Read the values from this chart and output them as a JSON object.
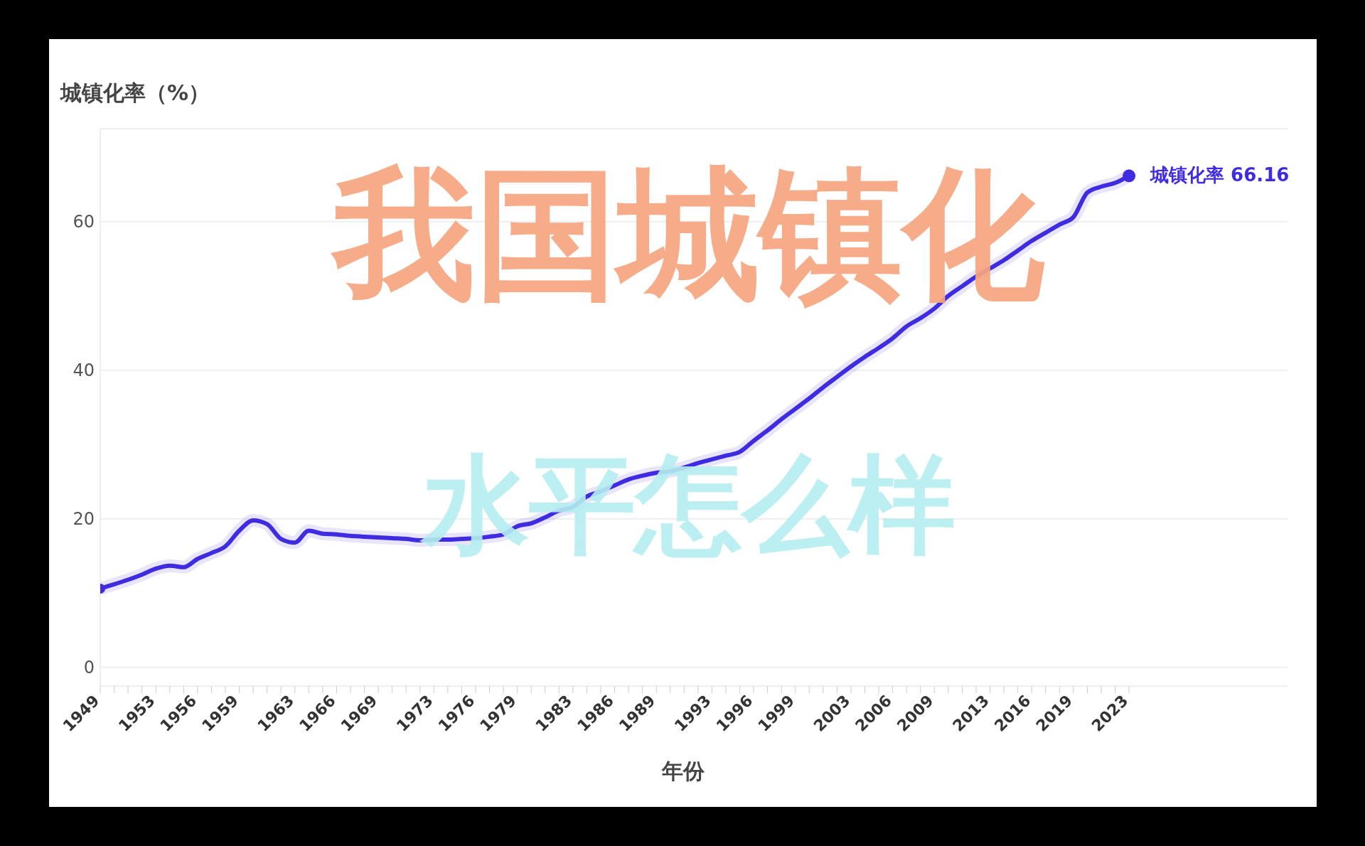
{
  "chart_data": {
    "type": "line",
    "title": "我国城镇化",
    "subtitle": "水平怎么样",
    "xlabel": "年份",
    "ylabel": "城镇化率（%）",
    "x": [
      1949,
      1950,
      1951,
      1952,
      1953,
      1954,
      1955,
      1956,
      1957,
      1958,
      1959,
      1960,
      1961,
      1962,
      1963,
      1964,
      1965,
      1966,
      1967,
      1968,
      1969,
      1970,
      1971,
      1972,
      1973,
      1974,
      1975,
      1976,
      1977,
      1978,
      1979,
      1980,
      1981,
      1982,
      1983,
      1984,
      1985,
      1986,
      1987,
      1988,
      1989,
      1990,
      1991,
      1992,
      1993,
      1994,
      1995,
      1996,
      1997,
      1998,
      1999,
      2000,
      2001,
      2002,
      2003,
      2004,
      2005,
      2006,
      2007,
      2008,
      2009,
      2010,
      2011,
      2012,
      2013,
      2014,
      2015,
      2016,
      2017,
      2018,
      2019,
      2020,
      2021,
      2022,
      2023
    ],
    "series": [
      {
        "name": "城镇化率",
        "color": "#3f2be0",
        "values": [
          10.6,
          11.2,
          11.8,
          12.5,
          13.3,
          13.7,
          13.5,
          14.6,
          15.4,
          16.3,
          18.4,
          19.8,
          19.3,
          17.3,
          16.8,
          18.4,
          18.0,
          17.9,
          17.7,
          17.6,
          17.5,
          17.4,
          17.3,
          17.1,
          17.2,
          17.2,
          17.3,
          17.4,
          17.6,
          17.9,
          19.0,
          19.4,
          20.2,
          21.1,
          21.6,
          23.0,
          23.7,
          24.5,
          25.3,
          25.8,
          26.2,
          26.4,
          26.9,
          27.5,
          28.0,
          28.5,
          29.0,
          30.5,
          31.9,
          33.4,
          34.8,
          36.2,
          37.7,
          39.1,
          40.5,
          41.8,
          43.0,
          44.3,
          45.9,
          47.0,
          48.3,
          50.0,
          51.3,
          52.6,
          53.7,
          54.8,
          56.1,
          57.4,
          58.5,
          59.6,
          60.6,
          63.9,
          64.7,
          65.2,
          66.16
        ],
        "value_labels": [
          null,
          null,
          null,
          null,
          null,
          null,
          null,
          null,
          null,
          null,
          null,
          null,
          null,
          null,
          null,
          null,
          null,
          null,
          null,
          null,
          null,
          null,
          null,
          null,
          null,
          null,
          null,
          null,
          null,
          null,
          null,
          null,
          null,
          null,
          null,
          null,
          null,
          null,
          null,
          null,
          null,
          null,
          null,
          null,
          null,
          null,
          null,
          null,
          null,
          null,
          null,
          null,
          null,
          null,
          null,
          null,
          null,
          null,
          null,
          null,
          null,
          null,
          null,
          null,
          null,
          null,
          null,
          null,
          null,
          null,
          null,
          null,
          null,
          null,
          "66.16"
        ]
      }
    ],
    "xlim": [
      1949,
      2034.4
    ],
    "xticks": [
      1949,
      {
        "value": 1950,
        "label": null
      },
      {
        "value": 1951,
        "label": null
      },
      {
        "value": 1952,
        "label": null
      },
      1953,
      {
        "value": 1954,
        "label": null
      },
      {
        "value": 1955,
        "label": null
      },
      1956,
      {
        "value": 1957,
        "label": null
      },
      {
        "value": 1958,
        "label": null
      },
      1959,
      {
        "value": 1960,
        "label": null
      },
      {
        "value": 1961,
        "label": null
      },
      {
        "value": 1962,
        "label": null
      },
      1963,
      {
        "value": 1964,
        "label": null
      },
      {
        "value": 1965,
        "label": null
      },
      1966,
      {
        "value": 1967,
        "label": null
      },
      {
        "value": 1968,
        "label": null
      },
      1969,
      {
        "value": 1970,
        "label": null
      },
      {
        "value": 1971,
        "label": null
      },
      {
        "value": 1972,
        "label": null
      },
      1973,
      {
        "value": 1974,
        "label": null
      },
      {
        "value": 1975,
        "label": null
      },
      1976,
      {
        "value": 1977,
        "label": null
      },
      {
        "value": 1978,
        "label": null
      },
      1979,
      {
        "value": 1980,
        "label": null
      },
      {
        "value": 1981,
        "label": null
      },
      {
        "value": 1982,
        "label": null
      },
      1983,
      {
        "value": 1984,
        "label": null
      },
      {
        "value": 1985,
        "label": null
      },
      1986,
      {
        "value": 1987,
        "label": null
      },
      {
        "value": 1988,
        "label": null
      },
      1989,
      {
        "value": 1990,
        "label": null
      },
      {
        "value": 1991,
        "label": null
      },
      {
        "value": 1992,
        "label": null
      },
      1993,
      {
        "value": 1994,
        "label": null
      },
      {
        "value": 1995,
        "label": null
      },
      1996,
      {
        "value": 1997,
        "label": null
      },
      {
        "value": 1998,
        "label": null
      },
      1999,
      {
        "value": 2000,
        "label": null
      },
      {
        "value": 2001,
        "label": null
      },
      {
        "value": 2002,
        "label": null
      },
      2003,
      {
        "value": 2004,
        "label": null
      },
      {
        "value": 2005,
        "label": null
      },
      2006,
      {
        "value": 2007,
        "label": null
      },
      {
        "value": 2008,
        "label": null
      },
      2009,
      {
        "value": 2010,
        "label": null
      },
      {
        "value": 2011,
        "label": null
      },
      {
        "value": 2012,
        "label": null
      },
      2013,
      {
        "value": 2014,
        "label": null
      },
      {
        "value": 2015,
        "label": null
      },
      2016,
      {
        "value": 2017,
        "label": null
      },
      {
        "value": 2018,
        "label": null
      },
      2019,
      {
        "value": 2020,
        "label": null
      },
      {
        "value": 2021,
        "label": null
      },
      {
        "value": 2022,
        "label": null
      },
      2023
    ],
    "ylim": [
      -2.5,
      72.5
    ],
    "yticks": [
      0,
      20,
      40,
      60
    ],
    "grid": "y"
  }
}
